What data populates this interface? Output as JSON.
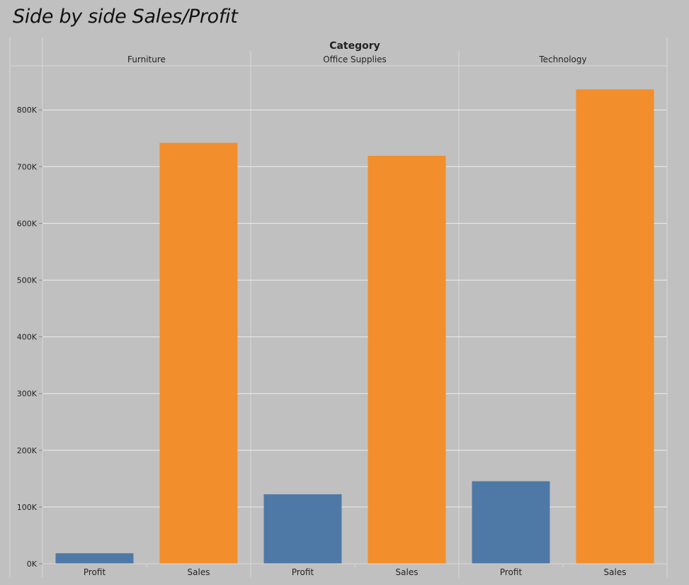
{
  "title": "Side by side Sales/Profit",
  "colors": {
    "profit": "#4e79a7",
    "sales": "#f28e2b"
  },
  "chart_data": {
    "type": "bar",
    "title": "Side by side Sales/Profit",
    "column_header": "Category",
    "categories": [
      "Furniture",
      "Office Supplies",
      "Technology"
    ],
    "measures": [
      "Profit",
      "Sales"
    ],
    "series": [
      {
        "name": "Profit",
        "values": [
          18451,
          122491,
          145455
        ]
      },
      {
        "name": "Sales",
        "values": [
          741999,
          719047,
          836154
        ]
      }
    ],
    "ylim": [
      0,
      850000
    ],
    "yticks": [
      0,
      100000,
      200000,
      300000,
      400000,
      500000,
      600000,
      700000,
      800000
    ],
    "ytick_labels": [
      "0K",
      "100K",
      "200K",
      "300K",
      "400K",
      "500K",
      "600K",
      "700K",
      "800K"
    ],
    "grid": true,
    "legend": "none"
  }
}
